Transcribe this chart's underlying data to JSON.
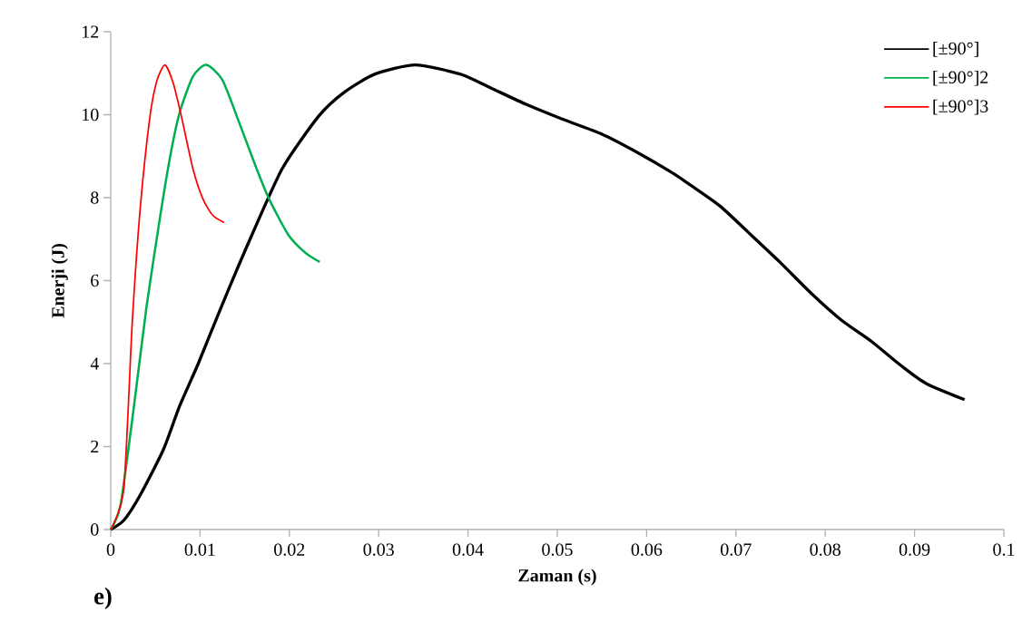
{
  "chart_data": {
    "type": "line",
    "xlabel": "Zaman (s)",
    "ylabel": "Enerji (J)",
    "annotations": [
      "e)"
    ],
    "xlim": [
      0,
      0.1
    ],
    "ylim": [
      0,
      12
    ],
    "xticks": [
      0,
      0.01,
      0.02,
      0.03,
      0.04,
      0.05,
      0.06,
      0.07,
      0.08,
      0.09,
      0.1
    ],
    "yticks": [
      0,
      2,
      4,
      6,
      8,
      10,
      12
    ],
    "grid": false,
    "legend": "top right",
    "marker": "none",
    "line_style": "solid",
    "series": [
      {
        "name": "[±90°]",
        "color": "#000000",
        "x": [
          0,
          0.0015,
          0.0033,
          0.0059,
          0.0077,
          0.0098,
          0.0125,
          0.0155,
          0.0192,
          0.0233,
          0.0262,
          0.0296,
          0.0341,
          0.0391,
          0.0425,
          0.0465,
          0.0506,
          0.055,
          0.0587,
          0.0628,
          0.0648,
          0.0682,
          0.0716,
          0.075,
          0.0784,
          0.0818,
          0.0852,
          0.0885,
          0.0913,
          0.0956
        ],
        "values": [
          0,
          0.23,
          0.83,
          1.93,
          2.97,
          4.0,
          5.43,
          6.95,
          8.7,
          9.97,
          10.55,
          10.98,
          11.2,
          10.98,
          10.65,
          10.25,
          9.89,
          9.53,
          9.12,
          8.61,
          8.32,
          7.8,
          7.12,
          6.43,
          5.7,
          5.05,
          4.53,
          3.95,
          3.52,
          3.13
        ]
      },
      {
        "name": "[±90°]2",
        "color": "#00b050",
        "x": [
          0,
          0.0011,
          0.0026,
          0.004,
          0.0055,
          0.0066,
          0.0077,
          0.0092,
          0.0107,
          0.0125,
          0.0144,
          0.0162,
          0.0177,
          0.0199,
          0.0218,
          0.0234
        ],
        "values": [
          0,
          0.59,
          2.97,
          5.36,
          7.5,
          8.93,
          10.04,
          10.92,
          11.2,
          10.84,
          9.8,
          8.77,
          7.98,
          7.1,
          6.67,
          6.45
        ]
      },
      {
        "name": "[±90°]3",
        "color": "#ff0000",
        "x": [
          0,
          0.00146,
          0.0024,
          0.0033,
          0.0044,
          0.0052,
          0.00608,
          0.007,
          0.0079,
          0.0092,
          0.0103,
          0.0114,
          0.0127
        ],
        "values": [
          0,
          0.98,
          4.96,
          7.74,
          9.97,
          10.84,
          11.2,
          10.76,
          9.97,
          8.7,
          7.98,
          7.58,
          7.4
        ]
      }
    ]
  }
}
